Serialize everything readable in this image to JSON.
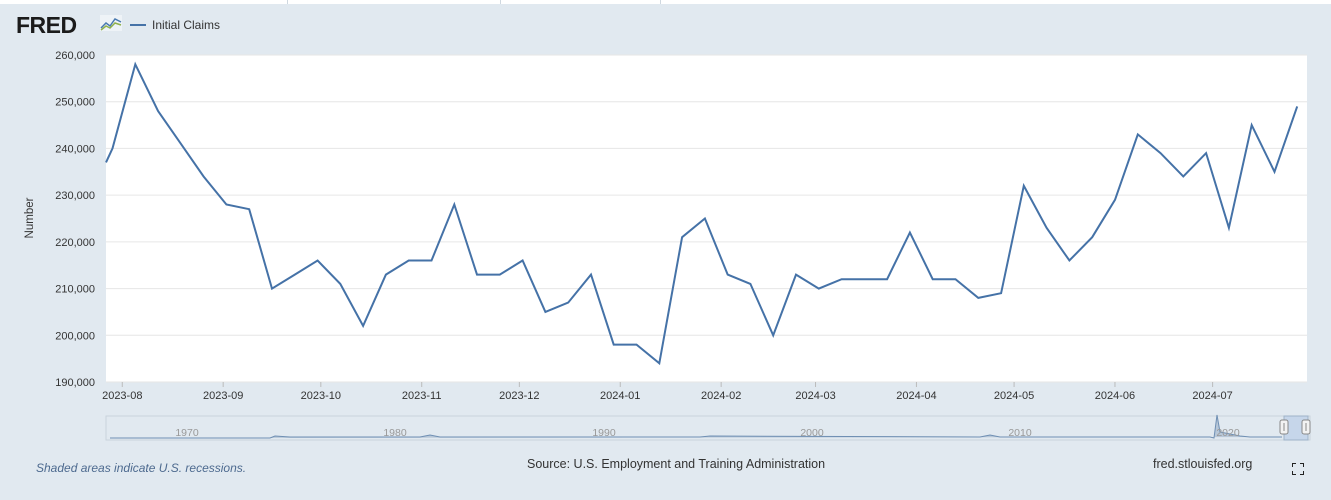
{
  "header": {
    "logo_text": "FRED",
    "legend_label": "Initial Claims"
  },
  "colors": {
    "series": "#4572a7",
    "background": "#e1e9f0",
    "plot_area": "#ffffff",
    "gridline": "#e6e6e6"
  },
  "footer": {
    "recession_note": "Shaded areas indicate U.S. recessions.",
    "source": "Source: U.S. Employment and Training Administration",
    "site": "fred.stlouisfed.org",
    "fullscreen_icon": "fullscreen-icon"
  },
  "navigator": {
    "labels": [
      "1970",
      "1980",
      "1990",
      "2000",
      "2010",
      "2020"
    ]
  },
  "chart_data": {
    "type": "line",
    "title": "",
    "xlabel": "",
    "ylabel": "Number",
    "ylim": [
      190000,
      260000
    ],
    "yticks": [
      190000,
      200000,
      210000,
      220000,
      230000,
      240000,
      250000,
      260000
    ],
    "ytick_labels": [
      "190,000",
      "200,000",
      "210,000",
      "220,000",
      "230,000",
      "240,000",
      "250,000",
      "260,000"
    ],
    "xlim": [
      "2023-07-27",
      "2024-07-30"
    ],
    "xticks": [
      "2023-08-01",
      "2023-09-01",
      "2023-10-01",
      "2023-11-01",
      "2023-12-01",
      "2024-01-01",
      "2024-02-01",
      "2024-03-01",
      "2024-04-01",
      "2024-05-01",
      "2024-06-01",
      "2024-07-01"
    ],
    "xtick_labels": [
      "2023-08",
      "2023-09",
      "2023-10",
      "2023-11",
      "2023-12",
      "2024-01",
      "2024-02",
      "2024-03",
      "2024-04",
      "2024-05",
      "2024-06",
      "2024-07"
    ],
    "grid": true,
    "legend": "top-left",
    "series": [
      {
        "name": "Initial Claims",
        "color": "#4572a7",
        "x": [
          "2023-07-27",
          "2023-07-29",
          "2023-08-05",
          "2023-08-12",
          "2023-08-19",
          "2023-08-26",
          "2023-09-02",
          "2023-09-09",
          "2023-09-16",
          "2023-09-23",
          "2023-09-30",
          "2023-10-07",
          "2023-10-14",
          "2023-10-21",
          "2023-10-28",
          "2023-11-04",
          "2023-11-11",
          "2023-11-18",
          "2023-11-25",
          "2023-12-02",
          "2023-12-09",
          "2023-12-16",
          "2023-12-23",
          "2023-12-30",
          "2024-01-06",
          "2024-01-13",
          "2024-01-20",
          "2024-01-27",
          "2024-02-03",
          "2024-02-10",
          "2024-02-17",
          "2024-02-24",
          "2024-03-02",
          "2024-03-09",
          "2024-03-16",
          "2024-03-23",
          "2024-03-30",
          "2024-04-06",
          "2024-04-13",
          "2024-04-20",
          "2024-04-27",
          "2024-05-04",
          "2024-05-11",
          "2024-05-18",
          "2024-05-25",
          "2024-06-01",
          "2024-06-08",
          "2024-06-15",
          "2024-06-22",
          "2024-06-29",
          "2024-07-06",
          "2024-07-13",
          "2024-07-20",
          "2024-07-27"
        ],
        "values": [
          237000,
          240000,
          258000,
          248000,
          241000,
          234000,
          228000,
          227000,
          210000,
          213000,
          216000,
          211000,
          202000,
          213000,
          216000,
          216000,
          228000,
          213000,
          213000,
          216000,
          205000,
          207000,
          213000,
          198000,
          198000,
          194000,
          221000,
          225000,
          213000,
          211000,
          200000,
          213000,
          210000,
          212000,
          212000,
          212000,
          222000,
          212000,
          212000,
          208000,
          209000,
          232000,
          223000,
          216000,
          221000,
          229000,
          243000,
          239000,
          234000,
          239000,
          223000,
          245000,
          235000,
          249000
        ]
      }
    ]
  }
}
